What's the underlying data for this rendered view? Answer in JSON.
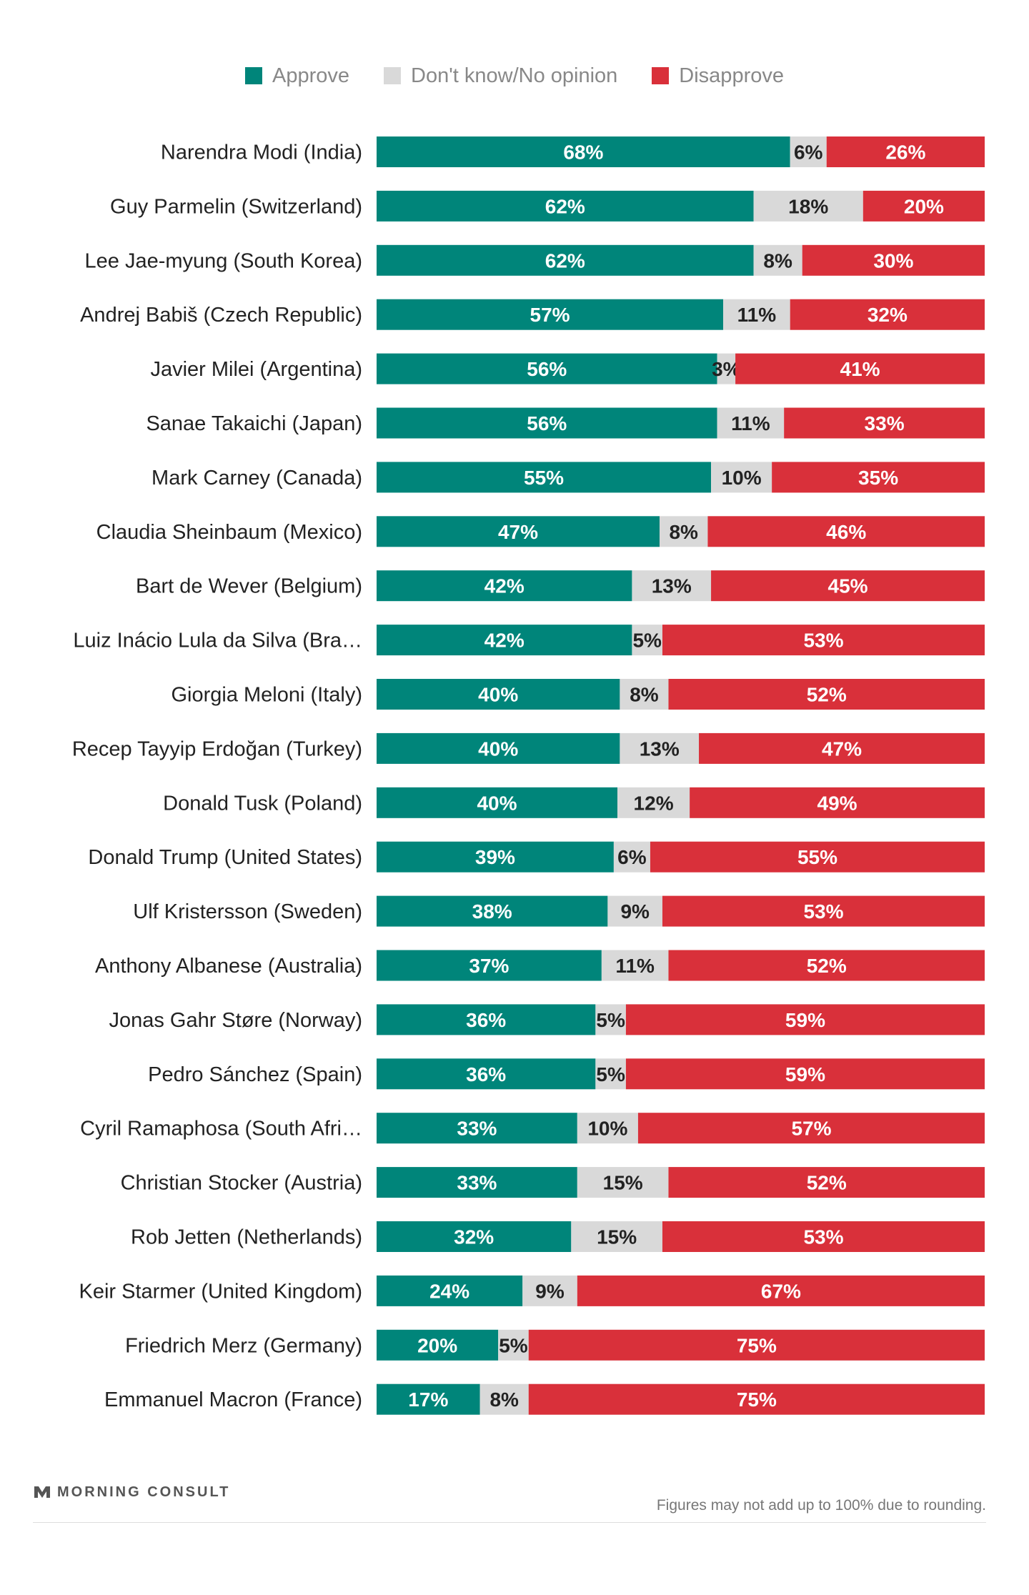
{
  "legend": [
    {
      "label": "Approve",
      "color": "#00857a"
    },
    {
      "label": "Don't know/No opinion",
      "color": "#d9d9d9"
    },
    {
      "label": "Disapprove",
      "color": "#d9303a"
    }
  ],
  "chart_data": {
    "type": "bar",
    "orientation": "horizontal",
    "stacked": true,
    "categories": [
      "Narendra Modi (India)",
      "Guy Parmelin (Switzerland)",
      "Lee Jae-myung (South Korea)",
      "Andrej Babiš (Czech Republic)",
      "Javier Milei (Argentina)",
      "Sanae Takaichi (Japan)",
      "Mark Carney (Canada)",
      "Claudia Sheinbaum (Mexico)",
      "Bart de Wever (Belgium)",
      "Luiz Inácio Lula da Silva (Bra…",
      "Giorgia Meloni (Italy)",
      "Recep Tayyip Erdoğan (Turkey)",
      "Donald Tusk (Poland)",
      "Donald Trump (United States)",
      "Ulf Kristersson (Sweden)",
      "Anthony Albanese (Australia)",
      "Jonas Gahr Støre (Norway)",
      "Pedro Sánchez (Spain)",
      "Cyril Ramaphosa (South Afri…",
      "Christian Stocker (Austria)",
      "Rob Jetten (Netherlands)",
      "Keir Starmer (United Kingdom)",
      "Friedrich Merz (Germany)",
      "Emmanuel Macron (France)"
    ],
    "series": [
      {
        "name": "Approve",
        "color": "#00857a",
        "values": [
          68,
          62,
          62,
          57,
          56,
          56,
          55,
          47,
          42,
          42,
          40,
          40,
          40,
          39,
          38,
          37,
          36,
          36,
          33,
          33,
          32,
          24,
          20,
          17
        ]
      },
      {
        "name": "Don't know/No opinion",
        "color": "#d9d9d9",
        "values": [
          6,
          18,
          8,
          11,
          3,
          11,
          10,
          8,
          13,
          5,
          8,
          13,
          12,
          6,
          9,
          11,
          5,
          5,
          10,
          15,
          15,
          9,
          5,
          8
        ]
      },
      {
        "name": "Disapprove",
        "color": "#d9303a",
        "values": [
          26,
          20,
          30,
          32,
          41,
          33,
          35,
          46,
          45,
          53,
          52,
          47,
          49,
          55,
          53,
          52,
          59,
          59,
          57,
          52,
          53,
          67,
          75,
          75
        ]
      }
    ],
    "value_suffix": "%"
  },
  "footer": {
    "brand": "MORNING CONSULT",
    "note": "Figures may not add up to 100% due to rounding."
  }
}
